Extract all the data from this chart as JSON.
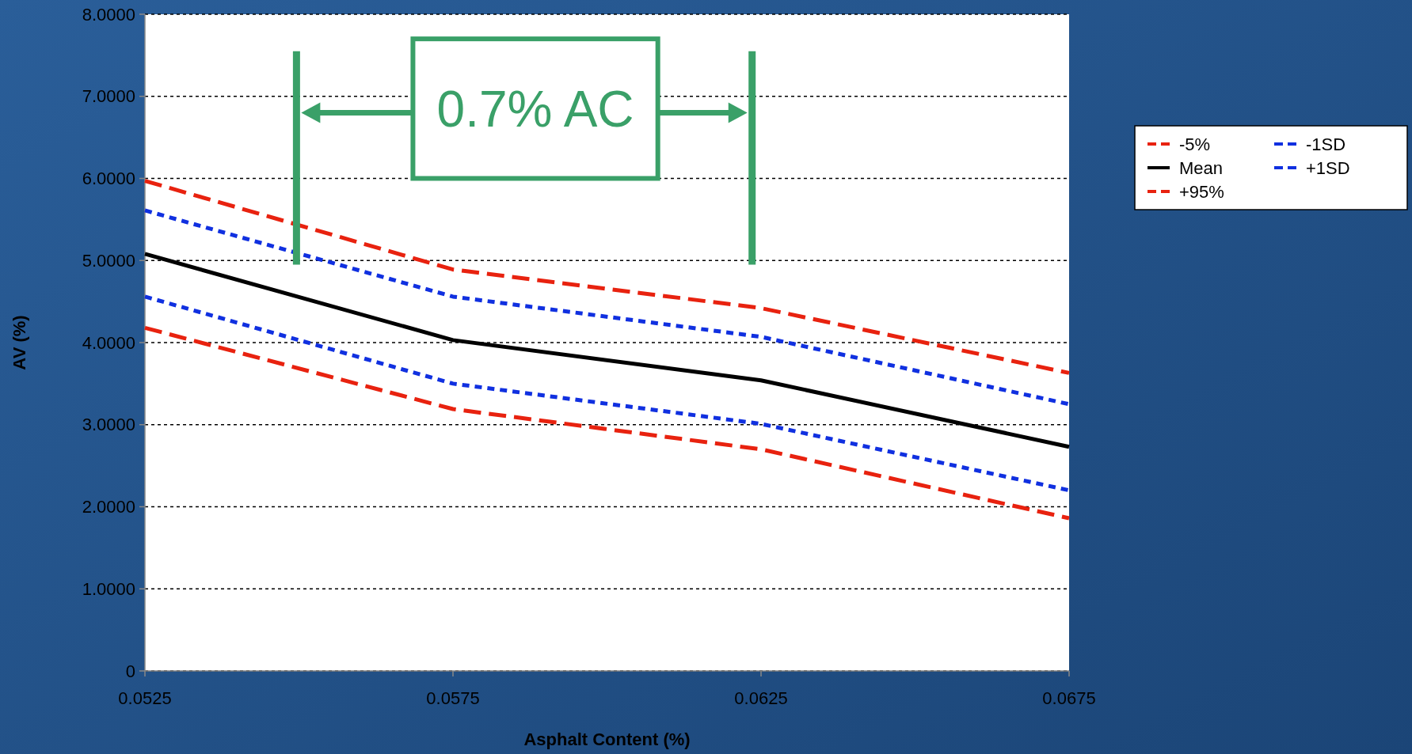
{
  "chart_data": {
    "type": "line",
    "xlabel": "Asphalt Content (%)",
    "ylabel": "AV (%)",
    "x": [
      0.0525,
      0.0575,
      0.0625,
      0.0675
    ],
    "series": [
      {
        "name": "-5%",
        "color": "#e8220f",
        "line_style": "dashed",
        "values": [
          4.18,
          3.19,
          2.7,
          1.86
        ]
      },
      {
        "name": "Mean",
        "color": "#000000",
        "line_style": "solid",
        "values": [
          5.08,
          4.03,
          3.54,
          2.73
        ]
      },
      {
        "name": "+95%",
        "color": "#e8220f",
        "line_style": "dashed",
        "values": [
          5.97,
          4.89,
          4.42,
          3.63
        ]
      },
      {
        "name": "-1SD",
        "color": "#1030e0",
        "line_style": "dotted",
        "values": [
          4.56,
          3.5,
          3.01,
          2.2
        ]
      },
      {
        "name": "+1SD",
        "color": "#1030e0",
        "line_style": "dotted",
        "values": [
          5.61,
          4.56,
          4.07,
          3.25
        ]
      }
    ],
    "xlim": [
      0.0525,
      0.0675
    ],
    "xticks": [
      0.0525,
      0.0575,
      0.0625,
      0.0675
    ],
    "ylim": [
      0,
      8
    ],
    "yticks": [
      0,
      {
        "value": 1,
        "label": "1.0000"
      },
      {
        "value": 2,
        "label": "2.0000"
      },
      {
        "value": 3,
        "label": "3.0000"
      },
      {
        "value": 4,
        "label": "4.0000"
      },
      {
        "value": 5,
        "label": "5.0000"
      },
      {
        "value": 6,
        "label": "6.0000"
      },
      {
        "value": 7,
        "label": "7.0000"
      },
      {
        "value": 8,
        "label": "8.0000"
      }
    ],
    "grid": "y",
    "legend": "right",
    "marker": "none",
    "annotations": [
      "0.7% AC"
    ]
  }
}
